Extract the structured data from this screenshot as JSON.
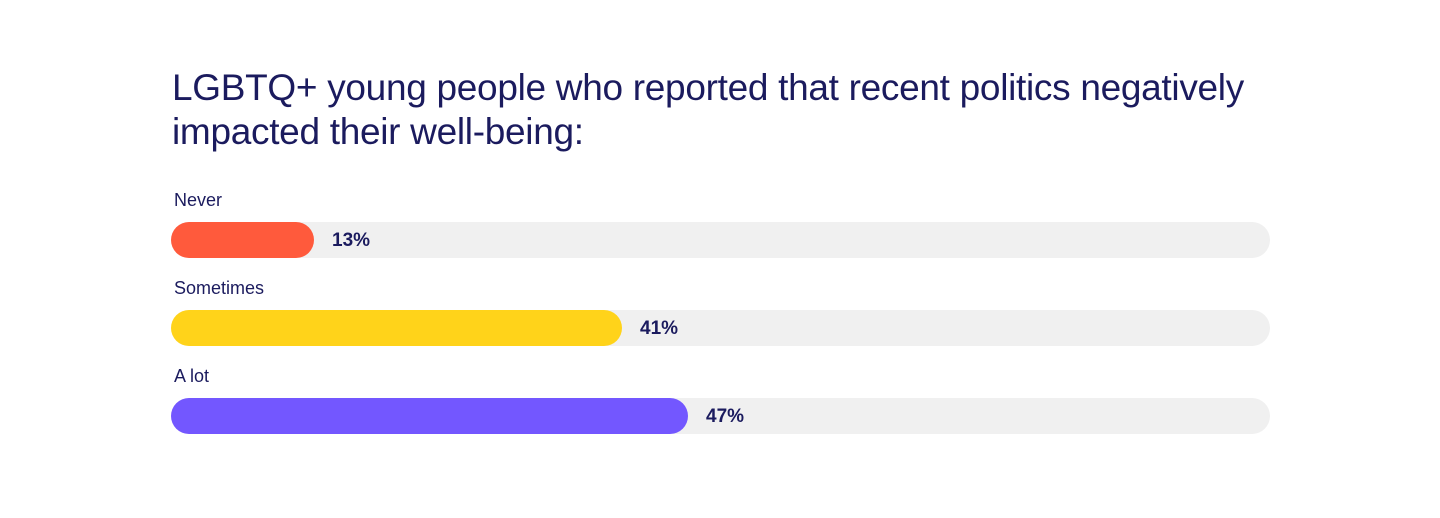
{
  "chart_data": {
    "type": "bar",
    "orientation": "horizontal",
    "title": "LGBTQ+ young people who reported that recent politics negatively impacted their well-being:",
    "categories": [
      "Never",
      "Sometimes",
      "A lot"
    ],
    "values": [
      13,
      41,
      47
    ],
    "value_labels": [
      "13%",
      "41%",
      "47%"
    ],
    "colors": [
      "#ff5a3c",
      "#ffd31a",
      "#7357ff"
    ],
    "track_color": "#f0f0f0",
    "xlim": [
      0,
      100
    ],
    "grid": false,
    "legend": "none"
  }
}
